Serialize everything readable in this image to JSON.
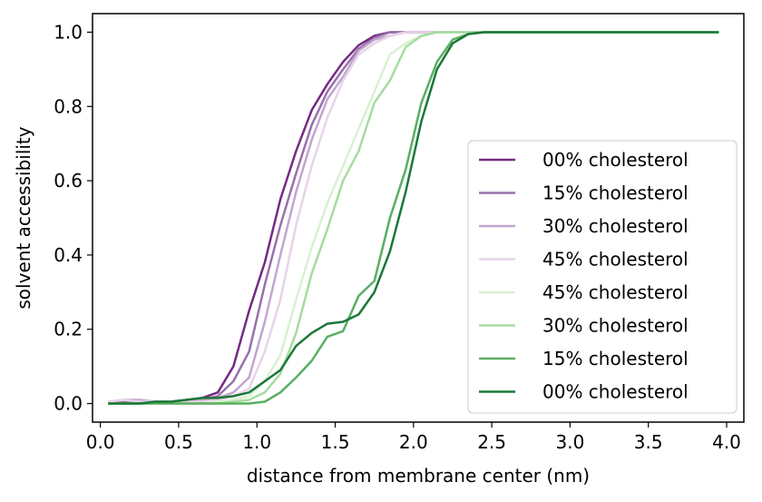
{
  "chart_data": {
    "type": "line",
    "title": "",
    "xlabel": "distance from membrane center (nm)",
    "ylabel": "solvent accessibility",
    "xlim": [
      -0.05,
      4.11
    ],
    "ylim": [
      -0.05,
      1.05
    ],
    "xticks": [
      0.0,
      0.5,
      1.0,
      1.5,
      2.0,
      2.5,
      3.0,
      3.5,
      4.0
    ],
    "xtick_labels": [
      "0.0",
      "0.5",
      "1.0",
      "1.5",
      "2.0",
      "2.5",
      "3.0",
      "3.5",
      "4.0"
    ],
    "yticks": [
      0.0,
      0.2,
      0.4,
      0.6,
      0.8,
      1.0
    ],
    "ytick_labels": [
      "0.0",
      "0.2",
      "0.4",
      "0.6",
      "0.8",
      "1.0"
    ],
    "grid": false,
    "legend_position": "lower-right",
    "series": [
      {
        "name": "00% cholesterol",
        "color": "#762a83",
        "x": [
          0.05,
          0.15,
          0.25,
          0.35,
          0.45,
          0.55,
          0.65,
          0.75,
          0.85,
          0.95,
          1.05,
          1.15,
          1.25,
          1.35,
          1.45,
          1.55,
          1.65,
          1.75,
          1.85,
          1.95,
          2.05,
          2.15,
          2.25,
          2.35,
          2.45,
          3.95
        ],
        "y": [
          0.0,
          0.005,
          0.005,
          0.005,
          0.005,
          0.01,
          0.015,
          0.03,
          0.1,
          0.25,
          0.38,
          0.55,
          0.68,
          0.79,
          0.86,
          0.92,
          0.965,
          0.99,
          1.0,
          1.0,
          1.0,
          1.0,
          1.0,
          1.0,
          1.0,
          1.0
        ]
      },
      {
        "name": "15% cholesterol",
        "color": "#9970ab",
        "x": [
          0.05,
          0.15,
          0.25,
          0.35,
          0.45,
          0.55,
          0.65,
          0.75,
          0.85,
          0.95,
          1.05,
          1.15,
          1.25,
          1.35,
          1.45,
          1.55,
          1.65,
          1.75,
          1.85,
          1.95,
          2.05,
          2.15,
          2.25,
          2.35,
          2.45,
          3.95
        ],
        "y": [
          0.0,
          0.005,
          0.005,
          0.005,
          0.005,
          0.01,
          0.01,
          0.02,
          0.06,
          0.14,
          0.32,
          0.48,
          0.62,
          0.75,
          0.84,
          0.9,
          0.955,
          0.985,
          1.0,
          1.0,
          1.0,
          1.0,
          1.0,
          1.0,
          1.0,
          1.0
        ]
      },
      {
        "name": "30% cholesterol",
        "color": "#c2a5cf",
        "x": [
          0.05,
          0.15,
          0.25,
          0.35,
          0.45,
          0.55,
          0.65,
          0.75,
          0.85,
          0.95,
          1.05,
          1.15,
          1.25,
          1.35,
          1.45,
          1.55,
          1.65,
          1.75,
          1.85,
          1.95,
          2.05,
          2.15,
          2.25,
          2.35,
          2.45,
          3.95
        ],
        "y": [
          0.005,
          0.01,
          0.01,
          0.005,
          0.005,
          0.005,
          0.01,
          0.015,
          0.03,
          0.07,
          0.22,
          0.4,
          0.57,
          0.71,
          0.82,
          0.88,
          0.95,
          0.98,
          0.99,
          1.0,
          1.0,
          1.0,
          1.0,
          1.0,
          1.0,
          1.0
        ]
      },
      {
        "name": "45% cholesterol",
        "color": "#e7d4e8",
        "x": [
          0.05,
          0.15,
          0.25,
          0.35,
          0.45,
          0.55,
          0.65,
          0.75,
          0.85,
          0.95,
          1.05,
          1.15,
          1.25,
          1.35,
          1.45,
          1.55,
          1.65,
          1.75,
          1.85,
          1.95,
          2.05,
          2.15,
          2.25,
          2.35,
          2.45,
          3.95
        ],
        "y": [
          0.005,
          0.01,
          0.005,
          0.005,
          0.005,
          0.005,
          0.005,
          0.01,
          0.02,
          0.04,
          0.14,
          0.28,
          0.48,
          0.64,
          0.77,
          0.87,
          0.94,
          0.97,
          0.99,
          1.0,
          1.0,
          1.0,
          1.0,
          1.0,
          1.0,
          1.0
        ]
      },
      {
        "name": "45% cholesterol",
        "color": "#d9f0d3",
        "x": [
          0.05,
          0.15,
          0.25,
          0.35,
          0.45,
          0.55,
          0.65,
          0.75,
          0.85,
          0.95,
          1.05,
          1.15,
          1.25,
          1.35,
          1.45,
          1.55,
          1.65,
          1.75,
          1.85,
          1.95,
          2.05,
          2.15,
          2.25,
          2.35,
          2.45,
          3.95
        ],
        "y": [
          0.0,
          0.0,
          0.0,
          0.0,
          0.0,
          0.0,
          0.0,
          0.005,
          0.01,
          0.02,
          0.06,
          0.13,
          0.28,
          0.42,
          0.54,
          0.64,
          0.74,
          0.84,
          0.94,
          0.97,
          0.99,
          1.0,
          1.0,
          1.0,
          1.0,
          1.0
        ]
      },
      {
        "name": "30% cholesterol",
        "color": "#a6dba0",
        "x": [
          0.05,
          0.15,
          0.25,
          0.35,
          0.45,
          0.55,
          0.65,
          0.75,
          0.85,
          0.95,
          1.05,
          1.15,
          1.25,
          1.35,
          1.45,
          1.55,
          1.65,
          1.75,
          1.85,
          1.95,
          2.05,
          2.15,
          2.25,
          2.35,
          2.45,
          3.95
        ],
        "y": [
          0.0,
          0.0,
          0.0,
          0.0,
          0.0,
          0.0,
          0.0,
          0.0,
          0.005,
          0.01,
          0.03,
          0.08,
          0.19,
          0.35,
          0.47,
          0.6,
          0.68,
          0.81,
          0.87,
          0.96,
          0.99,
          1.0,
          1.0,
          1.0,
          1.0,
          1.0
        ]
      },
      {
        "name": "15% cholesterol",
        "color": "#5aae61",
        "x": [
          0.05,
          0.15,
          0.25,
          0.35,
          0.45,
          0.55,
          0.65,
          0.75,
          0.85,
          0.95,
          1.05,
          1.15,
          1.25,
          1.35,
          1.45,
          1.55,
          1.65,
          1.75,
          1.85,
          1.95,
          2.05,
          2.15,
          2.25,
          2.35,
          2.45,
          3.95
        ],
        "y": [
          0.0,
          0.0,
          0.0,
          0.0,
          0.0,
          0.0,
          0.0,
          0.0,
          0.0,
          0.0,
          0.005,
          0.03,
          0.07,
          0.115,
          0.18,
          0.195,
          0.29,
          0.33,
          0.5,
          0.63,
          0.81,
          0.92,
          0.98,
          0.995,
          1.0,
          1.0
        ]
      },
      {
        "name": "00% cholesterol",
        "color": "#1b7837",
        "x": [
          0.05,
          0.15,
          0.25,
          0.35,
          0.45,
          0.55,
          0.65,
          0.75,
          0.85,
          0.95,
          1.05,
          1.15,
          1.25,
          1.35,
          1.45,
          1.55,
          1.65,
          1.75,
          1.85,
          1.95,
          2.05,
          2.15,
          2.25,
          2.35,
          2.45,
          3.95
        ],
        "y": [
          0.0,
          0.0,
          0.0,
          0.005,
          0.005,
          0.01,
          0.015,
          0.015,
          0.02,
          0.03,
          0.06,
          0.09,
          0.155,
          0.19,
          0.215,
          0.22,
          0.24,
          0.3,
          0.41,
          0.57,
          0.76,
          0.9,
          0.97,
          0.995,
          1.0,
          1.0
        ]
      }
    ]
  }
}
